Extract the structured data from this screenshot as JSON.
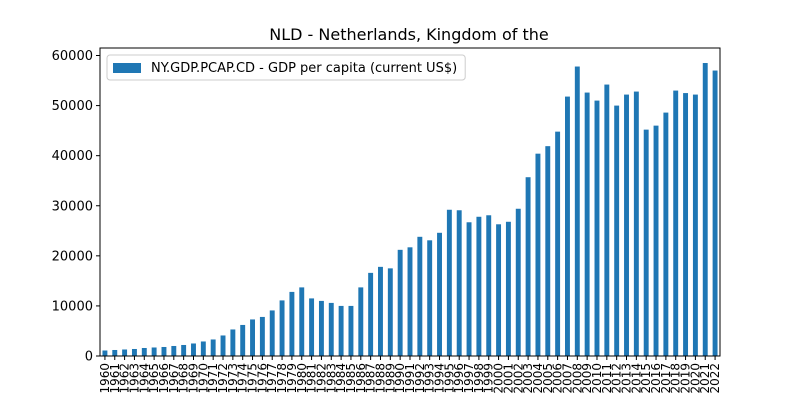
{
  "chart_data": {
    "type": "bar",
    "title": "NLD - Netherlands, Kingdom of the",
    "xlabel": "",
    "ylabel": "",
    "ylim": [
      0,
      61500
    ],
    "yticks": [
      0,
      10000,
      20000,
      30000,
      40000,
      50000,
      60000
    ],
    "grid": false,
    "legend_position": "top-left",
    "categories": [
      "1960",
      "1961",
      "1962",
      "1963",
      "1964",
      "1965",
      "1966",
      "1967",
      "1968",
      "1969",
      "1970",
      "1971",
      "1972",
      "1973",
      "1974",
      "1975",
      "1976",
      "1977",
      "1978",
      "1979",
      "1980",
      "1981",
      "1982",
      "1983",
      "1984",
      "1985",
      "1986",
      "1987",
      "1988",
      "1989",
      "1990",
      "1991",
      "1992",
      "1993",
      "1994",
      "1995",
      "1996",
      "1997",
      "1998",
      "1999",
      "2000",
      "2001",
      "2002",
      "2003",
      "2004",
      "2005",
      "2006",
      "2007",
      "2008",
      "2009",
      "2010",
      "2011",
      "2012",
      "2013",
      "2014",
      "2015",
      "2016",
      "2017",
      "2018",
      "2019",
      "2020",
      "2021",
      "2022"
    ],
    "series": [
      {
        "name": "NY.GDP.PCAP.CD - GDP per capita (current US$)",
        "color": "#1f77b4",
        "values": [
          1100,
          1200,
          1300,
          1400,
          1600,
          1700,
          1800,
          2000,
          2200,
          2500,
          2900,
          3300,
          4100,
          5300,
          6200,
          7300,
          7800,
          9100,
          11100,
          12800,
          13700,
          11500,
          11000,
          10600,
          10000,
          10000,
          13700,
          16600,
          17800,
          17500,
          21200,
          21700,
          23800,
          23100,
          24600,
          29200,
          29100,
          26700,
          27800,
          28100,
          26300,
          26800,
          29400,
          35700,
          40400,
          41900,
          44800,
          51800,
          57800,
          52600,
          51000,
          54200,
          50000,
          52200,
          52800,
          45200,
          46000,
          48600,
          53000,
          52500,
          52200,
          58500,
          57000
        ]
      }
    ]
  }
}
